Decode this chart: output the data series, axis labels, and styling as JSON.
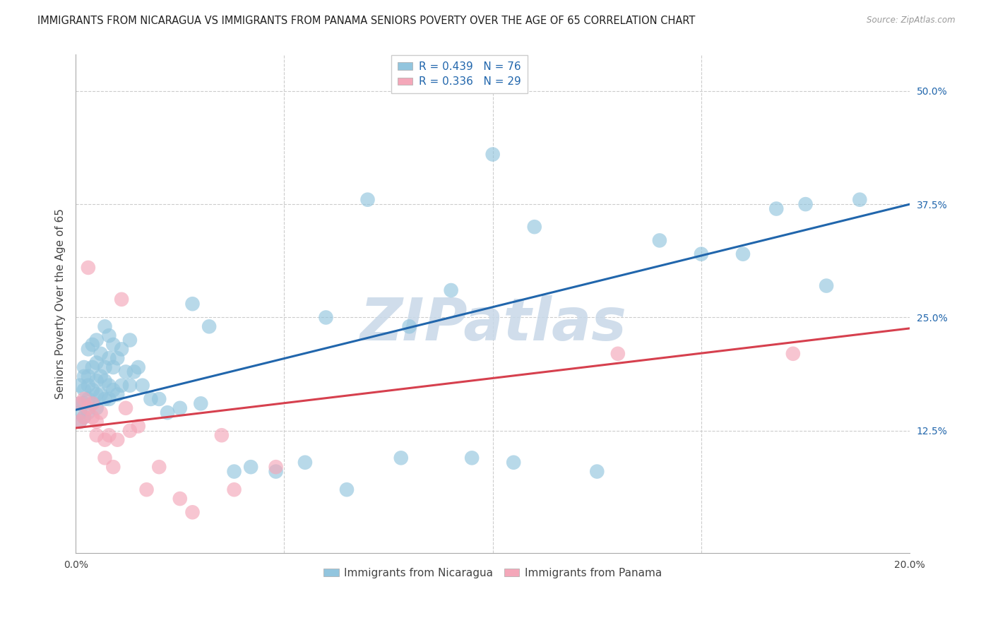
{
  "title": "IMMIGRANTS FROM NICARAGUA VS IMMIGRANTS FROM PANAMA SENIORS POVERTY OVER THE AGE OF 65 CORRELATION CHART",
  "source": "Source: ZipAtlas.com",
  "ylabel": "Seniors Poverty Over the Age of 65",
  "xlim": [
    0.0,
    0.2
  ],
  "ylim": [
    -0.01,
    0.54
  ],
  "xticks": [
    0.0,
    0.05,
    0.1,
    0.15,
    0.2
  ],
  "xticklabels": [
    "0.0%",
    "",
    "",
    "",
    "20.0%"
  ],
  "yticks": [
    0.125,
    0.25,
    0.375,
    0.5
  ],
  "yticklabels": [
    "12.5%",
    "25.0%",
    "37.5%",
    "50.0%"
  ],
  "nicaragua_R": 0.439,
  "nicaragua_N": 76,
  "panama_R": 0.336,
  "panama_N": 29,
  "nicaragua_color": "#92c5de",
  "panama_color": "#f4a7b9",
  "nicaragua_line_color": "#2166ac",
  "panama_line_color": "#d6404e",
  "watermark": "ZIPatlas",
  "watermark_color": "#c8d8e8",
  "nicaragua_x": [
    0.001,
    0.001,
    0.001,
    0.001,
    0.002,
    0.002,
    0.002,
    0.002,
    0.002,
    0.003,
    0.003,
    0.003,
    0.003,
    0.003,
    0.004,
    0.004,
    0.004,
    0.004,
    0.005,
    0.005,
    0.005,
    0.005,
    0.005,
    0.006,
    0.006,
    0.006,
    0.007,
    0.007,
    0.007,
    0.007,
    0.008,
    0.008,
    0.008,
    0.008,
    0.009,
    0.009,
    0.009,
    0.01,
    0.01,
    0.011,
    0.011,
    0.012,
    0.013,
    0.013,
    0.014,
    0.015,
    0.016,
    0.018,
    0.02,
    0.022,
    0.025,
    0.028,
    0.03,
    0.032,
    0.038,
    0.042,
    0.048,
    0.055,
    0.06,
    0.065,
    0.07,
    0.078,
    0.08,
    0.09,
    0.095,
    0.1,
    0.105,
    0.11,
    0.125,
    0.14,
    0.15,
    0.16,
    0.168,
    0.175,
    0.18,
    0.188
  ],
  "nicaragua_y": [
    0.135,
    0.145,
    0.155,
    0.175,
    0.14,
    0.155,
    0.17,
    0.185,
    0.195,
    0.145,
    0.16,
    0.175,
    0.185,
    0.215,
    0.155,
    0.17,
    0.195,
    0.22,
    0.15,
    0.165,
    0.18,
    0.2,
    0.225,
    0.165,
    0.185,
    0.21,
    0.16,
    0.18,
    0.195,
    0.24,
    0.16,
    0.175,
    0.205,
    0.23,
    0.17,
    0.195,
    0.22,
    0.165,
    0.205,
    0.175,
    0.215,
    0.19,
    0.175,
    0.225,
    0.19,
    0.195,
    0.175,
    0.16,
    0.16,
    0.145,
    0.15,
    0.265,
    0.155,
    0.24,
    0.08,
    0.085,
    0.08,
    0.09,
    0.25,
    0.06,
    0.38,
    0.095,
    0.24,
    0.28,
    0.095,
    0.43,
    0.09,
    0.35,
    0.08,
    0.335,
    0.32,
    0.32,
    0.37,
    0.375,
    0.285,
    0.38
  ],
  "panama_x": [
    0.001,
    0.001,
    0.002,
    0.002,
    0.003,
    0.003,
    0.004,
    0.004,
    0.005,
    0.005,
    0.006,
    0.007,
    0.007,
    0.008,
    0.009,
    0.01,
    0.011,
    0.012,
    0.013,
    0.015,
    0.017,
    0.02,
    0.025,
    0.028,
    0.035,
    0.038,
    0.048,
    0.13,
    0.172
  ],
  "panama_y": [
    0.135,
    0.155,
    0.14,
    0.16,
    0.15,
    0.305,
    0.155,
    0.14,
    0.135,
    0.12,
    0.145,
    0.115,
    0.095,
    0.12,
    0.085,
    0.115,
    0.27,
    0.15,
    0.125,
    0.13,
    0.06,
    0.085,
    0.05,
    0.035,
    0.12,
    0.06,
    0.085,
    0.21,
    0.21
  ],
  "nicaragua_trend_x": [
    0.0,
    0.2
  ],
  "nicaragua_trend_y": [
    0.148,
    0.375
  ],
  "panama_trend_x": [
    0.0,
    0.2
  ],
  "panama_trend_y": [
    0.128,
    0.238
  ],
  "legend_label1": "R = 0.439   N = 76",
  "legend_label2": "R = 0.336   N = 29",
  "legend_bottom1": "Immigrants from Nicaragua",
  "legend_bottom2": "Immigrants from Panama",
  "background_color": "#ffffff",
  "grid_color": "#cccccc",
  "title_fontsize": 10.5,
  "ylabel_fontsize": 11,
  "tick_fontsize": 10,
  "legend_fontsize": 11
}
